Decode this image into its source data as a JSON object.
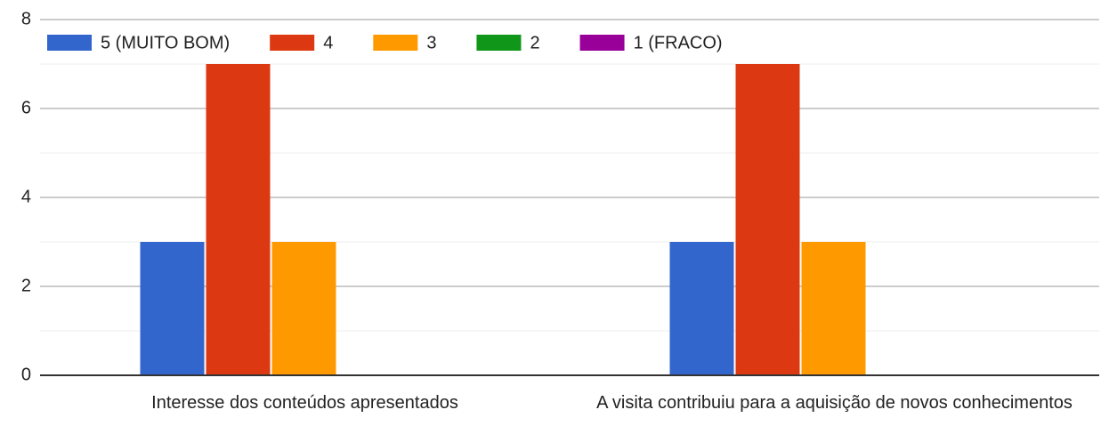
{
  "chart_data": {
    "type": "bar",
    "categories": [
      "Interesse dos conteúdos apresentados",
      "A visita contribuiu para a aquisição de novos conhecimentos"
    ],
    "series": [
      {
        "name": "5 (MUITO BOM)",
        "color": "#3366cc",
        "values": [
          3,
          3
        ]
      },
      {
        "name": "4",
        "color": "#dc3912",
        "values": [
          7,
          7
        ]
      },
      {
        "name": "3",
        "color": "#ff9900",
        "values": [
          3,
          3
        ]
      },
      {
        "name": "2",
        "color": "#109618",
        "values": [
          0,
          0
        ]
      },
      {
        "name": "1 (FRACO)",
        "color": "#990099",
        "values": [
          0,
          0
        ]
      }
    ],
    "ylim": [
      0,
      8
    ],
    "yticks": [
      0,
      2,
      4,
      6,
      8
    ],
    "grid": true,
    "legend": "top-left"
  }
}
